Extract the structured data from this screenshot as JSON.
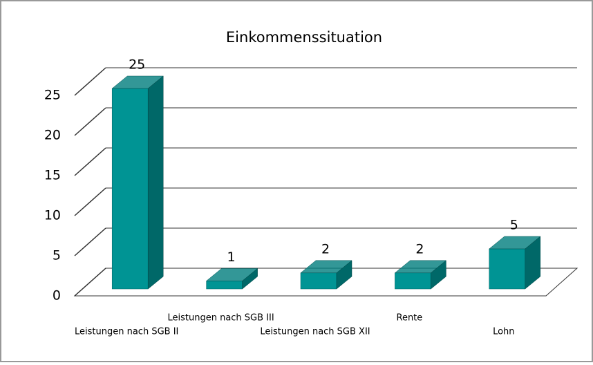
{
  "chart_data": {
    "type": "bar3d",
    "title": "Einkommenssituation",
    "categories": [
      "Leistungen nach SGB II",
      "Leistungen nach SGB III",
      "Leistungen nach SGB XII",
      "Rente",
      "Lohn"
    ],
    "values": [
      25,
      1,
      2,
      2,
      5
    ],
    "color": "#009494",
    "ylim": [
      0,
      25
    ],
    "yticks": [
      0,
      5,
      10,
      15,
      20,
      25
    ],
    "grid": true
  }
}
